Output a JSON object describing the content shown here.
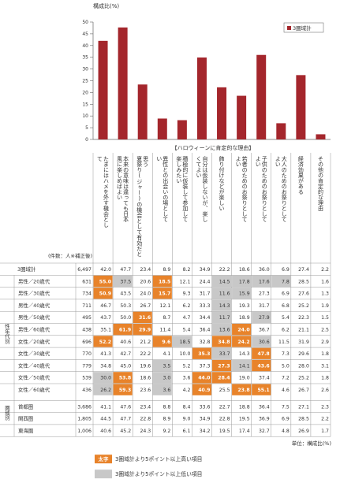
{
  "chart_data": {
    "type": "bar",
    "ylabel": "構成比(%)",
    "ylim": [
      0,
      50
    ],
    "yticks": [
      0,
      5,
      10,
      15,
      20,
      25,
      30,
      35,
      40,
      45,
      50
    ],
    "legend": {
      "label": "3圏域計",
      "placement": "top-right"
    },
    "bar_color": "#a4262c",
    "categories_heading": "【ハロウィーンに肯定的な理由】",
    "categories": [
      "たまにはハメを外す機会として",
      "本来の意味は違っても日本風に楽しめばよい",
      "思う",
      "異性との出会いの場として",
      "積極的に仮装して参加して楽しみたい",
      "自分は仮装しないが、楽しくてよい",
      "飾り付けなどが楽しい",
      "若者のためのお祭りとしてよい",
      "子供のためのお祭りとしてよい",
      "大人のためのお祭りとしてよい",
      "経済効果がある",
      "その他の肯定的な理由"
    ],
    "column_label_parts": [
      [
        "たまにはハメを外す機会とし",
        "て"
      ],
      [
        "本来の意味は違っても日本",
        "風に楽しめばよい"
      ],
      [
        "思う",
        "夏祭り(ジャー)の機会として有効だと"
      ],
      [
        "異性との出会いの場として",
        "い"
      ],
      [
        "積極的に仮装して参加して",
        "楽しみたい"
      ],
      [
        "自分は仮装しないが、楽し",
        "くてよい"
      ],
      [
        "飾り付けなどが楽しい",
        ""
      ],
      [
        "若者のためのお祭りとして",
        "よい"
      ],
      [
        "子供のためのお祭りとして",
        "よい"
      ],
      [
        "大人のためのお祭りとして",
        "よい"
      ],
      [
        "経済効果がある",
        ""
      ],
      [
        "その他の肯定的な理由",
        ""
      ]
    ],
    "values": [
      42.0,
      47.7,
      23.4,
      8.9,
      8.2,
      34.9,
      22.2,
      18.6,
      36.0,
      6.9,
      27.4,
      2.2
    ],
    "table": {
      "count_header": "(件数：人※補正後)",
      "group_labels": {
        "gender_age": "性年代別",
        "region": "圏域別"
      },
      "rows": [
        {
          "label": "3圏域計",
          "n": "6,497",
          "values": [
            "42.0",
            "47.7",
            "23.4",
            "8.9",
            "8.2",
            "34.9",
            "22.2",
            "18.6",
            "36.0",
            "6.9",
            "27.4",
            "2.2"
          ],
          "hl": "000000000000"
        },
        {
          "label": "男性／20歳代",
          "n": "631",
          "values": [
            "55.0",
            "37.5",
            "20.6",
            "18.5",
            "12.1",
            "24.4",
            "14.5",
            "17.8",
            "17.6",
            "7.8",
            "28.5",
            "1.6"
          ],
          "hl": "HL0H00LLLL00"
        },
        {
          "label": "男性／30歳代",
          "n": "734",
          "values": [
            "50.9",
            "43.5",
            "24.0",
            "15.7",
            "9.3",
            "31.7",
            "11.6",
            "15.9",
            "27.3",
            "6.9",
            "27.6",
            "1.3"
          ],
          "hl": "H00H00LL0000"
        },
        {
          "label": "男性／40歳代",
          "n": "711",
          "values": [
            "46.7",
            "50.3",
            "26.7",
            "12.1",
            "6.2",
            "33.3",
            "14.3",
            "19.3",
            "31.7",
            "6.8",
            "25.2",
            "1.9"
          ],
          "hl": "000000L00000"
        },
        {
          "label": "男性／50歳代",
          "n": "495",
          "values": [
            "43.7",
            "50.0",
            "31.6",
            "8.7",
            "4.7",
            "34.4",
            "11.7",
            "18.9",
            "27.9",
            "5.4",
            "22.3",
            "1.5"
          ],
          "hl": "00H000L0L000"
        },
        {
          "label": "男性／60歳代",
          "n": "438",
          "values": [
            "35.1",
            "61.9",
            "29.9",
            "11.4",
            "5.4",
            "36.4",
            "13.6",
            "24.0",
            "36.7",
            "6.2",
            "21.1",
            "2.5"
          ],
          "hl": "0HH000LH0000"
        },
        {
          "label": "女性／20歳代",
          "n": "696",
          "values": [
            "52.2",
            "40.6",
            "21.2",
            "9.6",
            "18.5",
            "32.8",
            "34.8",
            "24.2",
            "30.6",
            "11.5",
            "31.9",
            "2.9"
          ],
          "hl": "H00HL0HHL000"
        },
        {
          "label": "女性／30歳代",
          "n": "770",
          "values": [
            "41.3",
            "42.7",
            "22.2",
            "4.1",
            "10.0",
            "35.3",
            "33.7",
            "14.3",
            "47.8",
            "7.3",
            "29.6",
            "1.8"
          ],
          "hl": "00000HL0H000"
        },
        {
          "label": "女性／40歳代",
          "n": "779",
          "values": [
            "34.8",
            "45.0",
            "19.6",
            "3.5",
            "5.2",
            "37.3",
            "27.3",
            "14.1",
            "43.6",
            "5.0",
            "28.0",
            "3.1"
          ],
          "hl": "000L00HLH000"
        },
        {
          "label": "女性／50歳代",
          "n": "539",
          "values": [
            "30.0",
            "53.8",
            "18.6",
            "3.0",
            "3.6",
            "44.0",
            "28.4",
            "19.0",
            "37.4",
            "7.2",
            "25.2",
            "1.8"
          ],
          "hl": "LH0L0HH00000"
        },
        {
          "label": "女性／60歳代",
          "n": "436",
          "values": [
            "26.2",
            "59.3",
            "23.6",
            "3.6",
            "4.2",
            "40.9",
            "25.5",
            "23.8",
            "55.1",
            "4.6",
            "26.7",
            "2.6"
          ],
          "hl": "LH0L0H0HH000"
        },
        {
          "label": "首都圏",
          "n": "3,686",
          "values": [
            "41.1",
            "47.6",
            "23.4",
            "8.8",
            "8.4",
            "33.6",
            "22.7",
            "18.8",
            "36.4",
            "7.5",
            "27.1",
            "2.3"
          ],
          "hl": "000000000000"
        },
        {
          "label": "関西圏",
          "n": "1,805",
          "values": [
            "44.5",
            "47.7",
            "22.8",
            "8.9",
            "9.0",
            "34.9",
            "22.8",
            "19.5",
            "36.9",
            "6.9",
            "28.5",
            "2.2"
          ],
          "hl": "000000000000"
        },
        {
          "label": "東海圏",
          "n": "1,006",
          "values": [
            "40.6",
            "45.2",
            "24.3",
            "9.2",
            "6.1",
            "34.2",
            "19.5",
            "17.4",
            "32.7",
            "4.8",
            "26.9",
            "1.7"
          ],
          "hl": "000000000000"
        }
      ]
    },
    "unit_note": "単位：構成比(%)",
    "key": [
      {
        "swatch": "太字",
        "text": "3圏域計より5ポイント以上高い項目",
        "color": "#e8832a"
      },
      {
        "swatch": "",
        "text": "3圏域計より5ポイント以上低い項目",
        "color": "#c8c8c8"
      }
    ]
  }
}
